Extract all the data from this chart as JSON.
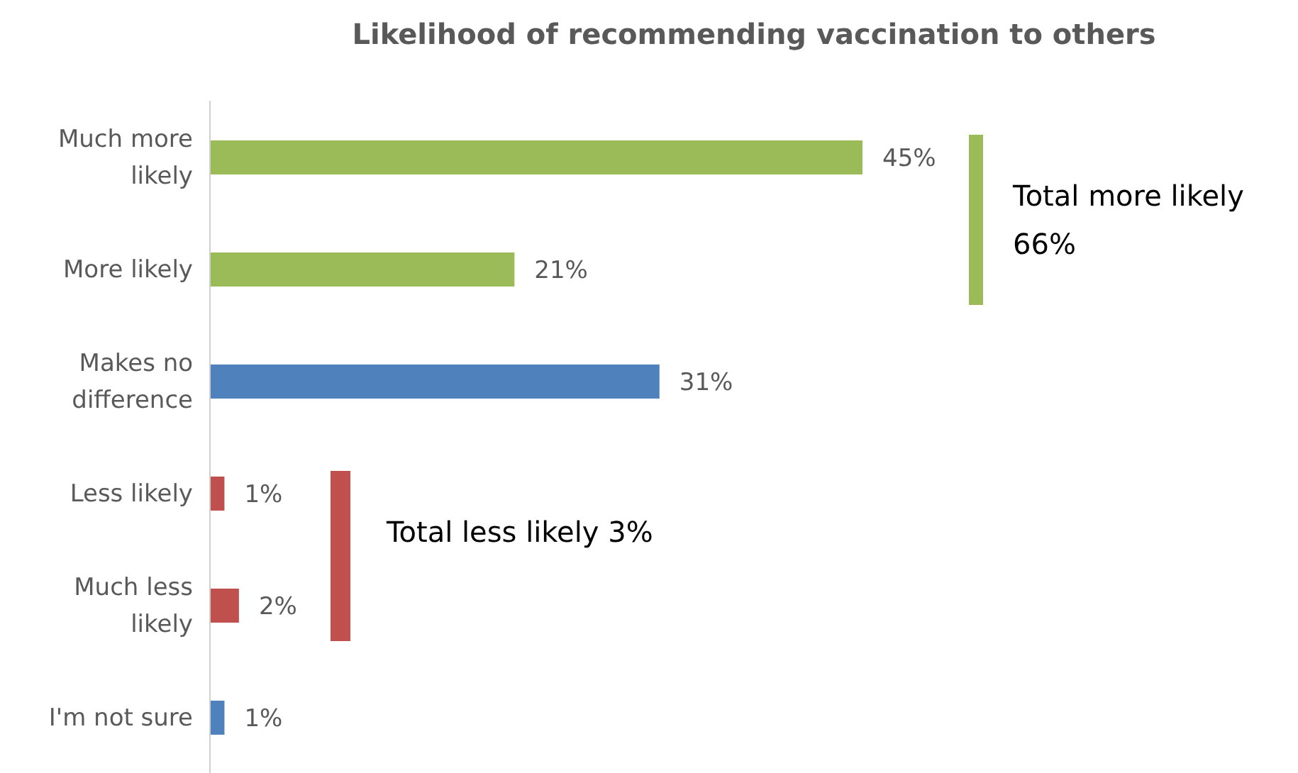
{
  "chart_data": {
    "type": "bar",
    "orientation": "horizontal",
    "title": "Likelihood of recommending vaccination to others",
    "categories": [
      "Much more likely",
      "More likely",
      "Makes no difference",
      "Less likely",
      "Much less likely",
      "I'm not sure"
    ],
    "values": [
      45,
      21,
      31,
      1,
      2,
      1
    ],
    "colors": [
      "#9bbb59",
      "#9bbb59",
      "#4f81bd",
      "#c0504d",
      "#c0504d",
      "#4f81bd"
    ],
    "data_labels": true,
    "value_labels": [
      "45%",
      "21%",
      "31%",
      "1%",
      "2%",
      "1%"
    ],
    "annotations": [
      "Total more likely 66%",
      "Total less likely 3%"
    ]
  }
}
